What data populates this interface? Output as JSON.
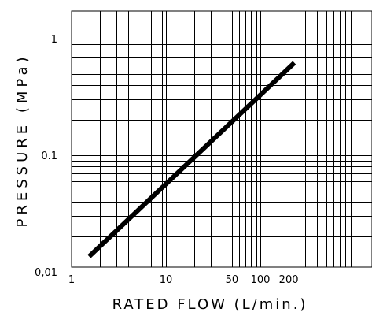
{
  "chart_data": {
    "type": "line",
    "title": "",
    "xlabel": "RATED FLOW (L/min.)",
    "ylabel": "PRESSURE (MPa)",
    "x_scale": "log",
    "y_scale": "log",
    "xlim": [
      1,
      1000
    ],
    "ylim": [
      0.01,
      1
    ],
    "grid": true,
    "x_tick_labels": [
      "1",
      "10",
      "50",
      "100",
      "200"
    ],
    "x_tick_values": [
      1,
      10,
      50,
      100,
      200
    ],
    "y_tick_labels": [
      "0,01",
      "0.1",
      "1"
    ],
    "y_tick_values": [
      0.01,
      0.1,
      1
    ],
    "series": [
      {
        "x": [
          1.6,
          220
        ],
        "y": [
          0.014,
          0.6
        ]
      }
    ],
    "colors": {
      "line": "#000000",
      "grid": "#000000",
      "background": "#ffffff"
    }
  }
}
